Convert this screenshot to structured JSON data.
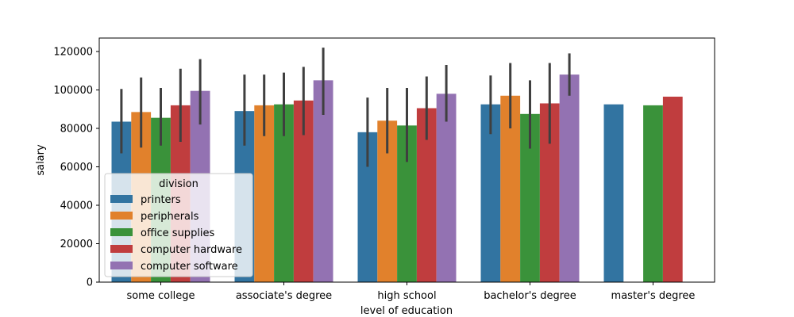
{
  "chart_data": {
    "type": "bar",
    "title": "",
    "xlabel": "level of education",
    "ylabel": "salary",
    "ylim": [
      0,
      127000
    ],
    "yticks": [
      0,
      20000,
      40000,
      60000,
      80000,
      100000,
      120000
    ],
    "categories": [
      "some college",
      "associate's degree",
      "high school",
      "bachelor's degree",
      "master's degree"
    ],
    "legend": {
      "title": "division",
      "placement": "lower-left"
    },
    "series": [
      {
        "name": "printers",
        "color": "#3274a1",
        "values": [
          83500,
          89000,
          78000,
          92500,
          92500
        ],
        "error_low": [
          67000,
          71000,
          60000,
          77000,
          null
        ],
        "error_high": [
          100500,
          108000,
          96000,
          107500,
          null
        ]
      },
      {
        "name": "peripherals",
        "color": "#e1812c",
        "values": [
          88500,
          92000,
          84000,
          97000,
          null
        ],
        "error_low": [
          70000,
          76000,
          67000,
          80000,
          null
        ],
        "error_high": [
          106500,
          108000,
          101000,
          114000,
          null
        ]
      },
      {
        "name": "office supplies",
        "color": "#3a923a",
        "values": [
          85500,
          92500,
          81500,
          87500,
          92000
        ],
        "error_low": [
          71000,
          76000,
          62500,
          69500,
          null
        ],
        "error_high": [
          101000,
          109000,
          101000,
          105000,
          null
        ]
      },
      {
        "name": "computer hardware",
        "color": "#c03d3e",
        "values": [
          92000,
          94500,
          90500,
          93000,
          96500
        ],
        "error_low": [
          73000,
          76500,
          74000,
          72000,
          null
        ],
        "error_high": [
          111000,
          112000,
          107000,
          114000,
          null
        ]
      },
      {
        "name": "computer software",
        "color": "#9372b2",
        "values": [
          99500,
          105000,
          98000,
          108000,
          null
        ],
        "error_low": [
          82000,
          87000,
          83500,
          97000,
          null
        ],
        "error_high": [
          116000,
          122000,
          113000,
          119000,
          null
        ]
      }
    ]
  }
}
